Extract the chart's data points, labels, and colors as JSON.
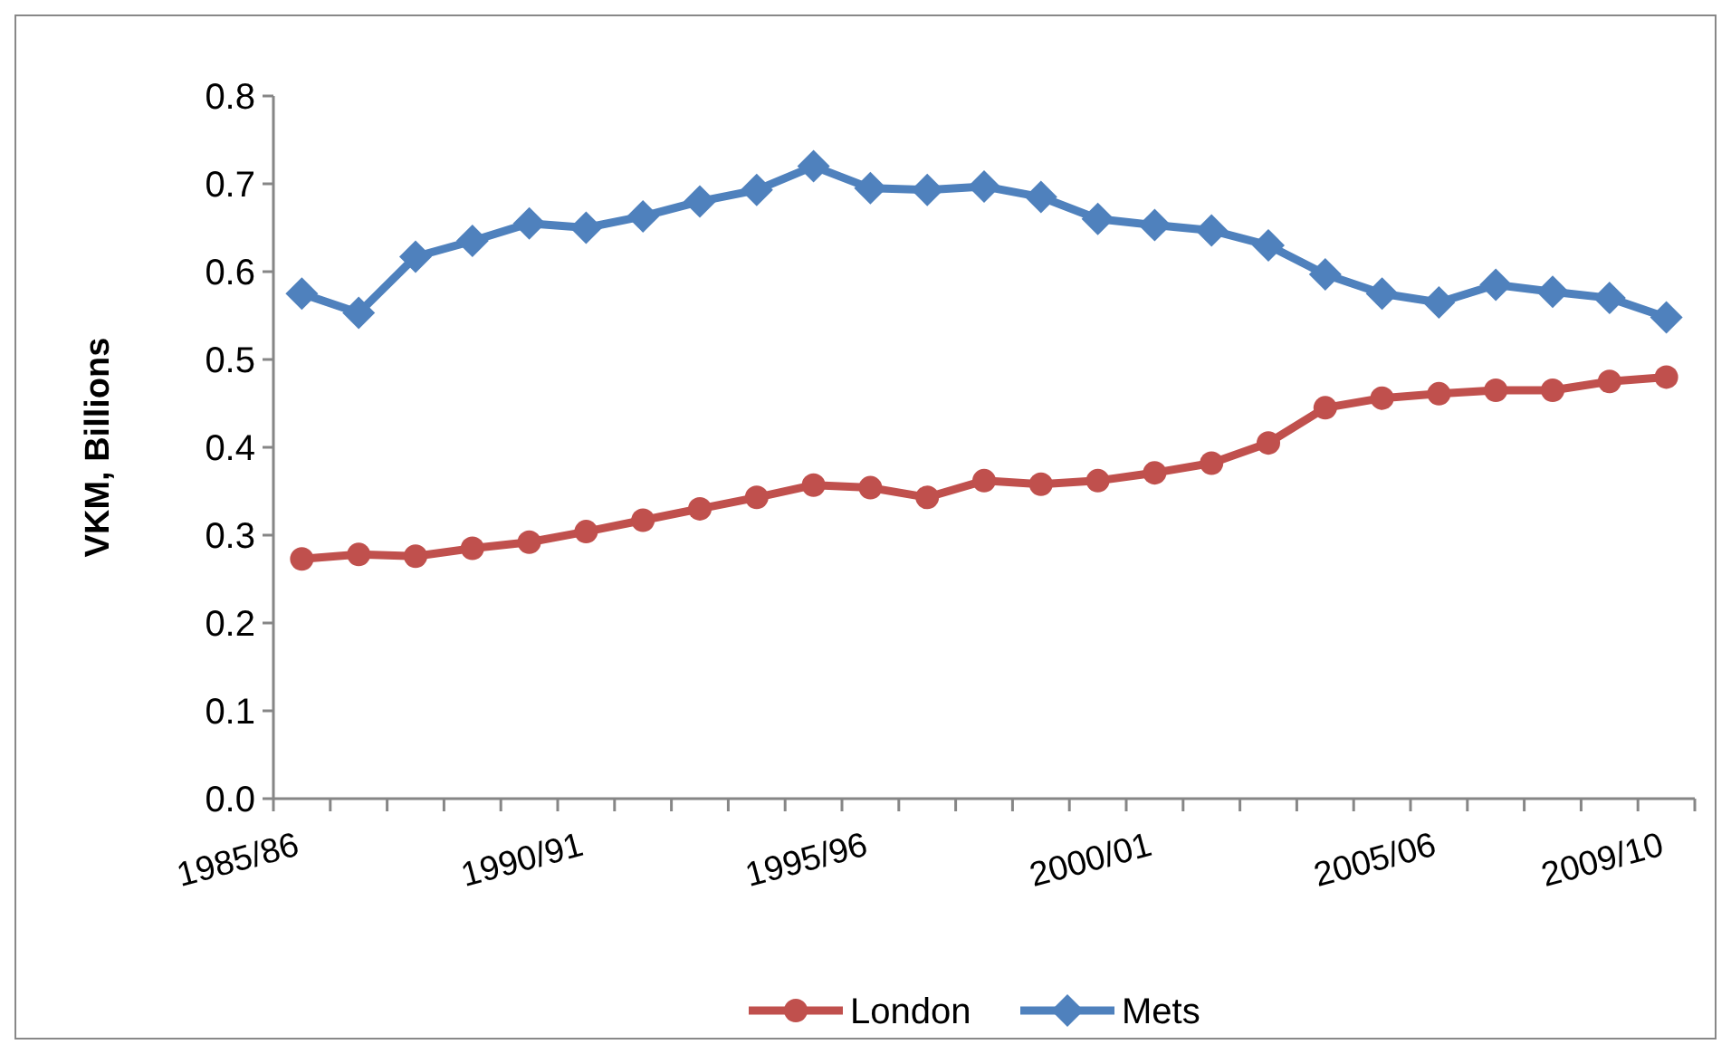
{
  "chart_data": {
    "type": "line",
    "ylabel": "VKM, Billions",
    "categories": [
      "1985/86",
      null,
      null,
      null,
      null,
      "1990/91",
      null,
      null,
      null,
      null,
      "1995/96",
      null,
      null,
      null,
      null,
      "2000/01",
      null,
      null,
      null,
      null,
      "2005/06",
      null,
      null,
      null,
      "2009/10"
    ],
    "ylim": [
      0,
      0.8
    ],
    "yticks": [
      {
        "value": 0,
        "label": "0.0"
      },
      0.1,
      0.2,
      0.3,
      0.4,
      0.5,
      0.6,
      0.7,
      0.8
    ],
    "grid": false,
    "legend": "bottom",
    "series": [
      {
        "name": "London",
        "color": "#c0504d",
        "marker": "circle",
        "values": [
          0.273,
          0.278,
          0.276,
          0.285,
          0.292,
          0.304,
          0.317,
          0.33,
          0.343,
          0.357,
          0.354,
          0.343,
          0.362,
          0.358,
          0.362,
          0.371,
          0.382,
          0.405,
          0.445,
          0.456,
          0.461,
          0.465,
          0.465,
          0.475,
          0.48
        ]
      },
      {
        "name": "Mets",
        "color": "#4f81bd",
        "marker": "diamond",
        "values": [
          0.575,
          0.553,
          0.617,
          0.635,
          0.655,
          0.65,
          0.663,
          0.68,
          0.693,
          0.72,
          0.695,
          0.693,
          0.697,
          0.685,
          0.66,
          0.653,
          0.647,
          0.63,
          0.597,
          0.575,
          0.565,
          0.585,
          0.577,
          0.57,
          0.548
        ]
      }
    ]
  }
}
